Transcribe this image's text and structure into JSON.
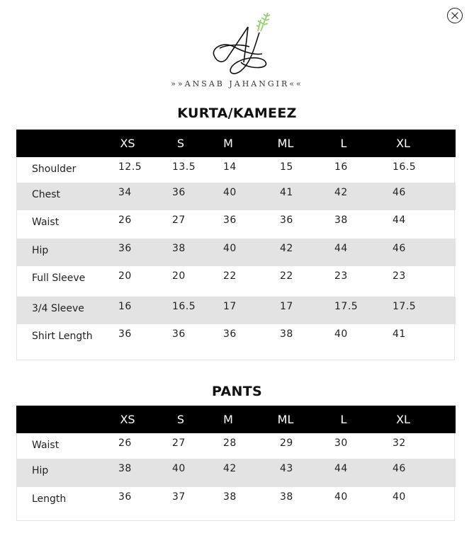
{
  "brand": {
    "name": "ANSAB JAHANGIR",
    "monogram": "AJ",
    "leaf_color": "#9ccf7e"
  },
  "close_icon": "close-circle-icon",
  "sizes": [
    "XS",
    "S",
    "M",
    "ML",
    "L",
    "XL"
  ],
  "kurta": {
    "title": "KURTA/KAMEEZ",
    "rows": [
      {
        "label": "Shoulder",
        "values": [
          "12.5",
          "13.5",
          "14",
          "15",
          "16",
          "16.5"
        ]
      },
      {
        "label": "Chest",
        "values": [
          "34",
          "36",
          "40",
          "41",
          "42",
          "46"
        ]
      },
      {
        "label": "Waist",
        "values": [
          "26",
          "27",
          "36",
          "36",
          "38",
          "44"
        ]
      },
      {
        "label": "Hip",
        "values": [
          "36",
          "38",
          "40",
          "42",
          "44",
          "46"
        ]
      },
      {
        "label": "Full Sleeve",
        "values": [
          "20",
          "20",
          "22",
          "22",
          "23",
          "23"
        ]
      },
      {
        "label": "3/4 Sleeve",
        "values": [
          "16",
          "16.5",
          "17",
          "17",
          "17.5",
          "17.5"
        ]
      },
      {
        "label": "Shirt Length",
        "values": [
          "36",
          "36",
          "36",
          "38",
          "40",
          "41"
        ]
      }
    ]
  },
  "pants": {
    "title": "PANTS",
    "rows": [
      {
        "label": "Waist",
        "values": [
          "26",
          "27",
          "28",
          "29",
          "30",
          "32"
        ]
      },
      {
        "label": "Hip",
        "values": [
          "38",
          "40",
          "42",
          "43",
          "44",
          "46"
        ]
      },
      {
        "label": "Length",
        "values": [
          "36",
          "37",
          "38",
          "38",
          "40",
          "40"
        ]
      }
    ]
  },
  "colors": {
    "header_bg": "#000000",
    "stripe": "#e3e3e3"
  }
}
